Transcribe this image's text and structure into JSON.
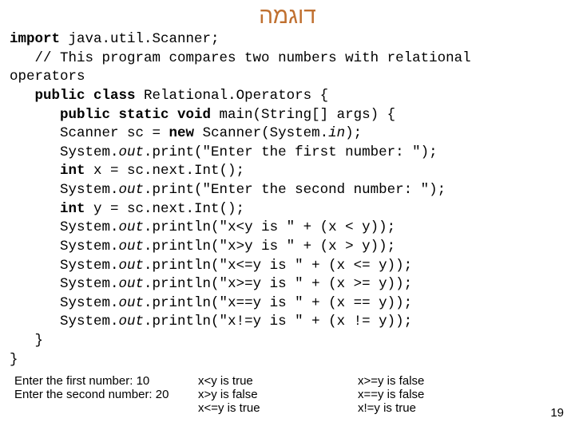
{
  "title": "דוגמה",
  "code": [
    {
      "indent": 0,
      "tokens": [
        {
          "t": "import",
          "c": "kw"
        },
        {
          "t": " java.util.Scanner;",
          "c": ""
        }
      ]
    },
    {
      "indent": 1,
      "tokens": [
        {
          "t": "// This program compares two numbers with relational ",
          "c": "cm"
        }
      ]
    },
    {
      "indent": -1,
      "tokens": [
        {
          "t": "operators",
          "c": "cm"
        }
      ]
    },
    {
      "indent": 1,
      "tokens": [
        {
          "t": "public class",
          "c": "kw"
        },
        {
          "t": " Relational.Operators {",
          "c": ""
        }
      ]
    },
    {
      "indent": 2,
      "tokens": [
        {
          "t": "public static void",
          "c": "kw"
        },
        {
          "t": " main(String[] args) {",
          "c": ""
        }
      ]
    },
    {
      "indent": 2,
      "tokens": [
        {
          "t": "Scanner sc = ",
          "c": ""
        },
        {
          "t": "new",
          "c": "kw"
        },
        {
          "t": " Scanner(System.",
          "c": ""
        },
        {
          "t": "in",
          "c": "it"
        },
        {
          "t": ");",
          "c": ""
        }
      ]
    },
    {
      "indent": 2,
      "tokens": [
        {
          "t": "System.",
          "c": ""
        },
        {
          "t": "out",
          "c": "it"
        },
        {
          "t": ".print(\"Enter the first number: \");",
          "c": ""
        }
      ]
    },
    {
      "indent": 2,
      "tokens": [
        {
          "t": "int",
          "c": "kw"
        },
        {
          "t": " x = sc.next.Int();",
          "c": ""
        }
      ]
    },
    {
      "indent": 2,
      "tokens": [
        {
          "t": "System.",
          "c": ""
        },
        {
          "t": "out",
          "c": "it"
        },
        {
          "t": ".print(\"Enter the second number: \");",
          "c": ""
        }
      ]
    },
    {
      "indent": 2,
      "tokens": [
        {
          "t": "int",
          "c": "kw"
        },
        {
          "t": " y = sc.next.Int();",
          "c": ""
        }
      ]
    },
    {
      "indent": 2,
      "tokens": [
        {
          "t": "System.",
          "c": ""
        },
        {
          "t": "out",
          "c": "it"
        },
        {
          "t": ".println(\"x<y is \" + (x < y));",
          "c": ""
        }
      ]
    },
    {
      "indent": 2,
      "tokens": [
        {
          "t": "System.",
          "c": ""
        },
        {
          "t": "out",
          "c": "it"
        },
        {
          "t": ".println(\"x>y is \" + (x > y));",
          "c": ""
        }
      ]
    },
    {
      "indent": 2,
      "tokens": [
        {
          "t": "System.",
          "c": ""
        },
        {
          "t": "out",
          "c": "it"
        },
        {
          "t": ".println(\"x<=y is \" + (x <= y));",
          "c": ""
        }
      ]
    },
    {
      "indent": 2,
      "tokens": [
        {
          "t": "System.",
          "c": ""
        },
        {
          "t": "out",
          "c": "it"
        },
        {
          "t": ".println(\"x>=y is \" + (x >= y));",
          "c": ""
        }
      ]
    },
    {
      "indent": 2,
      "tokens": [
        {
          "t": "System.",
          "c": ""
        },
        {
          "t": "out",
          "c": "it"
        },
        {
          "t": ".println(\"x==y is \" + (x == y));",
          "c": ""
        }
      ]
    },
    {
      "indent": 2,
      "tokens": [
        {
          "t": "System.",
          "c": ""
        },
        {
          "t": "out",
          "c": "it"
        },
        {
          "t": ".println(\"x!=y is \" + (x != y));",
          "c": ""
        }
      ]
    },
    {
      "indent": 1,
      "tokens": [
        {
          "t": "}",
          "c": ""
        }
      ]
    },
    {
      "indent": -1,
      "tokens": [
        {
          "t": "}",
          "c": ""
        }
      ]
    }
  ],
  "bottom": {
    "col1": [
      "Enter the first number: 10",
      "Enter the second number: 20"
    ],
    "col2": [
      "x<y is true",
      "x>y is false",
      "x<=y is true"
    ],
    "col3": [
      "x>=y is false",
      "x==y is false",
      "x!=y is true"
    ]
  },
  "pagenum": "19",
  "indent_unit": "   "
}
